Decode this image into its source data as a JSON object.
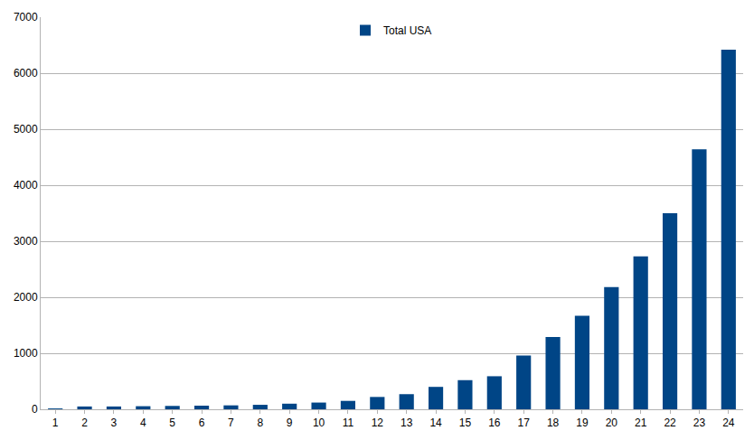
{
  "chart_data": {
    "type": "bar",
    "categories": [
      1,
      2,
      3,
      4,
      5,
      6,
      7,
      8,
      9,
      10,
      11,
      12,
      13,
      14,
      15,
      16,
      17,
      18,
      19,
      20,
      21,
      22,
      23,
      24
    ],
    "series": [
      {
        "name": "Total USA",
        "color": "#004586",
        "values": [
          15,
          50,
          50,
          55,
          60,
          65,
          70,
          80,
          100,
          120,
          150,
          220,
          270,
          400,
          520,
          590,
          960,
          1290,
          1670,
          2180,
          2730,
          3500,
          4640,
          6420
        ]
      }
    ],
    "ylim": [
      0,
      7000
    ],
    "yticks": [
      0,
      1000,
      2000,
      3000,
      4000,
      5000,
      6000,
      7000
    ],
    "grid": true,
    "legend": "top"
  }
}
